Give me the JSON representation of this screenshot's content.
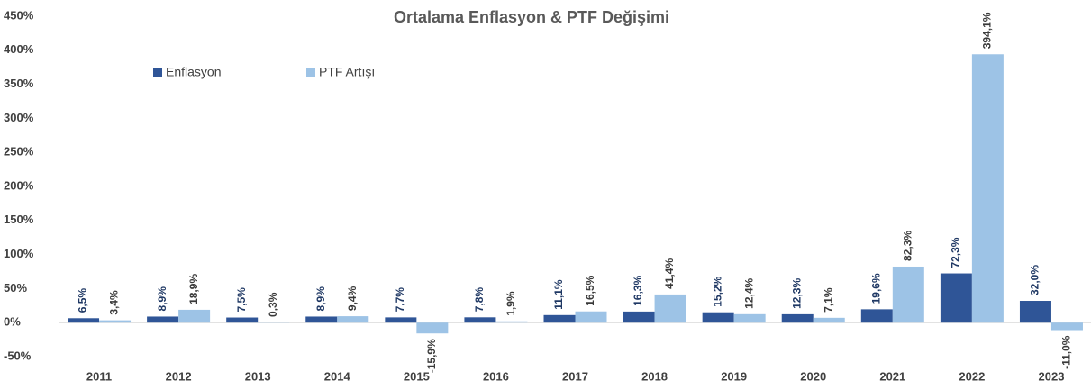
{
  "chart_data": {
    "type": "bar",
    "title": "Ortalama Enflasyon & PTF Değişimi",
    "categories": [
      "2011",
      "2012",
      "2013",
      "2014",
      "2015",
      "2016",
      "2017",
      "2018",
      "2019",
      "2020",
      "2021",
      "2022",
      "2023"
    ],
    "series": [
      {
        "name": "Enflasyon",
        "color": "#2F5597",
        "label_color": "#1F3864",
        "values": [
          6.5,
          8.9,
          7.5,
          8.9,
          7.7,
          7.8,
          11.1,
          16.3,
          15.2,
          12.3,
          19.6,
          72.3,
          32.0
        ],
        "value_labels": [
          "6,5%",
          "8,9%",
          "7,5%",
          "8,9%",
          "7,7%",
          "7,8%",
          "11,1%",
          "16,3%",
          "15,2%",
          "12,3%",
          "19,6%",
          "72,3%",
          "32,0%"
        ]
      },
      {
        "name": "PTF Artışı",
        "color": "#9DC3E6",
        "label_color": "#3a3a3a",
        "values": [
          3.4,
          18.9,
          0.3,
          9.4,
          -15.9,
          1.9,
          16.5,
          41.4,
          12.4,
          7.1,
          82.3,
          394.1,
          -11.0
        ],
        "value_labels": [
          "3,4%",
          "18,9%",
          "0,3%",
          "9,4%",
          "-15,9%",
          "1,9%",
          "16,5%",
          "41,4%",
          "12,4%",
          "7,1%",
          "82,3%",
          "394,1%",
          "-11,0%"
        ]
      }
    ],
    "ylim": [
      -50,
      450
    ],
    "yticks": [
      {
        "value": -50,
        "label": "-50%"
      },
      {
        "value": 0,
        "label": "0%"
      },
      {
        "value": 50,
        "label": "50%"
      },
      {
        "value": 100,
        "label": "100%"
      },
      {
        "value": 150,
        "label": "150%"
      },
      {
        "value": 200,
        "label": "200%"
      },
      {
        "value": 250,
        "label": "250%"
      },
      {
        "value": 300,
        "label": "300%"
      },
      {
        "value": 350,
        "label": "350%"
      },
      {
        "value": 400,
        "label": "400%"
      },
      {
        "value": 450,
        "label": "450%"
      }
    ],
    "grid": false
  }
}
